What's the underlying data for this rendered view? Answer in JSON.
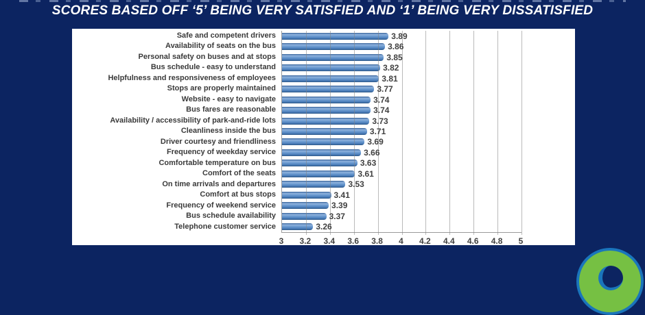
{
  "slide": {
    "subtitle": "SCORES BASED OFF ‘5’ BEING VERY SATISFIED AND ‘1’ BEING VERY DISSATISFIED"
  },
  "colors": {
    "background": "#0c2461",
    "panel": "#ffffff",
    "bar": "#4f81bd",
    "chart_text": "#3a3a3a",
    "subtitle_text": "#ffffff",
    "gridline": "#828282",
    "logo_green": "#76c043",
    "logo_blue": "#1a75bb"
  },
  "chart_data": {
    "type": "bar",
    "orientation": "horizontal",
    "title": "",
    "xlabel": "",
    "ylabel": "",
    "xlim": [
      3,
      5
    ],
    "xticks": [
      3,
      3.2,
      3.4,
      3.6,
      3.8,
      4,
      4.2,
      4.4,
      4.6,
      4.8,
      5
    ],
    "xtick_labels": [
      "3",
      "3.2",
      "3.4",
      "3.6",
      "3.8",
      "4",
      "4.2",
      "4.4",
      "4.6",
      "4.8",
      "5"
    ],
    "grid": true,
    "legend": false,
    "data_labels_shown": true,
    "categories": [
      "Safe and competent drivers",
      "Availability of seats on the bus",
      "Personal safety on buses and at stops",
      "Bus schedule - easy to understand",
      "Helpfulness and responsiveness of employees",
      "Stops are properly maintained",
      "Website - easy to navigate",
      "Bus fares are reasonable",
      "Availability / accessibility of park-and-ride lots",
      "Cleanliness inside the bus",
      "Driver courtesy and friendliness",
      "Frequency of weekday service",
      "Comfortable temperature on bus",
      "Comfort of the seats",
      "On time arrivals and departures",
      "Comfort at bus stops",
      "Frequency of weekend service",
      "Bus schedule availability",
      "Telephone customer service"
    ],
    "values": [
      3.89,
      3.86,
      3.85,
      3.82,
      3.81,
      3.77,
      3.74,
      3.74,
      3.73,
      3.71,
      3.69,
      3.66,
      3.63,
      3.61,
      3.53,
      3.41,
      3.39,
      3.37,
      3.26
    ]
  }
}
